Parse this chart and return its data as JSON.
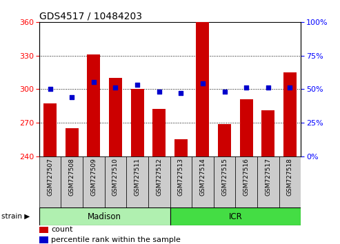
{
  "title": "GDS4517 / 10484203",
  "samples": [
    "GSM727507",
    "GSM727508",
    "GSM727509",
    "GSM727510",
    "GSM727511",
    "GSM727512",
    "GSM727513",
    "GSM727514",
    "GSM727515",
    "GSM727516",
    "GSM727517",
    "GSM727518"
  ],
  "counts": [
    287,
    265,
    331,
    310,
    300,
    282,
    255,
    360,
    269,
    291,
    281,
    315
  ],
  "percentiles": [
    50,
    44,
    55,
    51,
    53,
    48,
    47,
    54,
    48,
    51,
    51,
    51
  ],
  "groups": [
    {
      "label": "Madison",
      "start": 0,
      "end": 6,
      "color": "#b0f0b0"
    },
    {
      "label": "ICR",
      "start": 6,
      "end": 12,
      "color": "#44dd44"
    }
  ],
  "ylim_left": [
    240,
    360
  ],
  "ylim_right": [
    0,
    100
  ],
  "yticks_left": [
    240,
    270,
    300,
    330,
    360
  ],
  "yticks_right": [
    0,
    25,
    50,
    75,
    100
  ],
  "bar_color": "#cc0000",
  "scatter_color": "#0000cc",
  "bar_bottom": 240,
  "tick_label_area_color": "#cccccc",
  "strain_label": "strain",
  "legend_count": "count",
  "legend_pct": "percentile rank within the sample",
  "title_fontsize": 10,
  "tick_fontsize": 8,
  "legend_fontsize": 8
}
